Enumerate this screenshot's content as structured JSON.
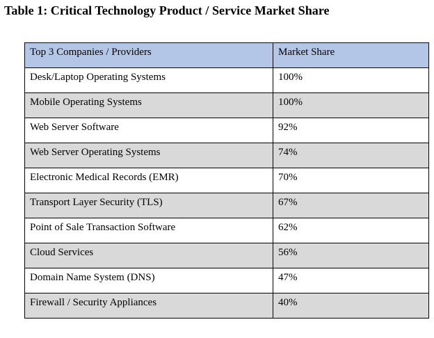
{
  "caption": "Table 1: Critical Technology Product / Service Market Share",
  "table": {
    "headers": [
      "Top 3 Companies / Providers",
      "Market Share"
    ],
    "rows": [
      [
        "Desk/Laptop Operating Systems",
        "100%"
      ],
      [
        "Mobile Operating Systems",
        "100%"
      ],
      [
        "Web Server Software",
        "92%"
      ],
      [
        "Web Server Operating Systems",
        "74%"
      ],
      [
        "Electronic Medical Records (EMR)",
        "70%"
      ],
      [
        "Transport Layer Security (TLS)",
        "67%"
      ],
      [
        "Point of Sale Transaction Software",
        "62%"
      ],
      [
        "Cloud Services",
        "56%"
      ],
      [
        "Domain Name System (DNS)",
        "47%"
      ],
      [
        "Firewall / Security Appliances",
        "40%"
      ]
    ]
  },
  "colors": {
    "header_background": "#b4c6e7",
    "striped_row_background": "#d9d9d9",
    "row_background": "#ffffff",
    "border": "#000000"
  }
}
